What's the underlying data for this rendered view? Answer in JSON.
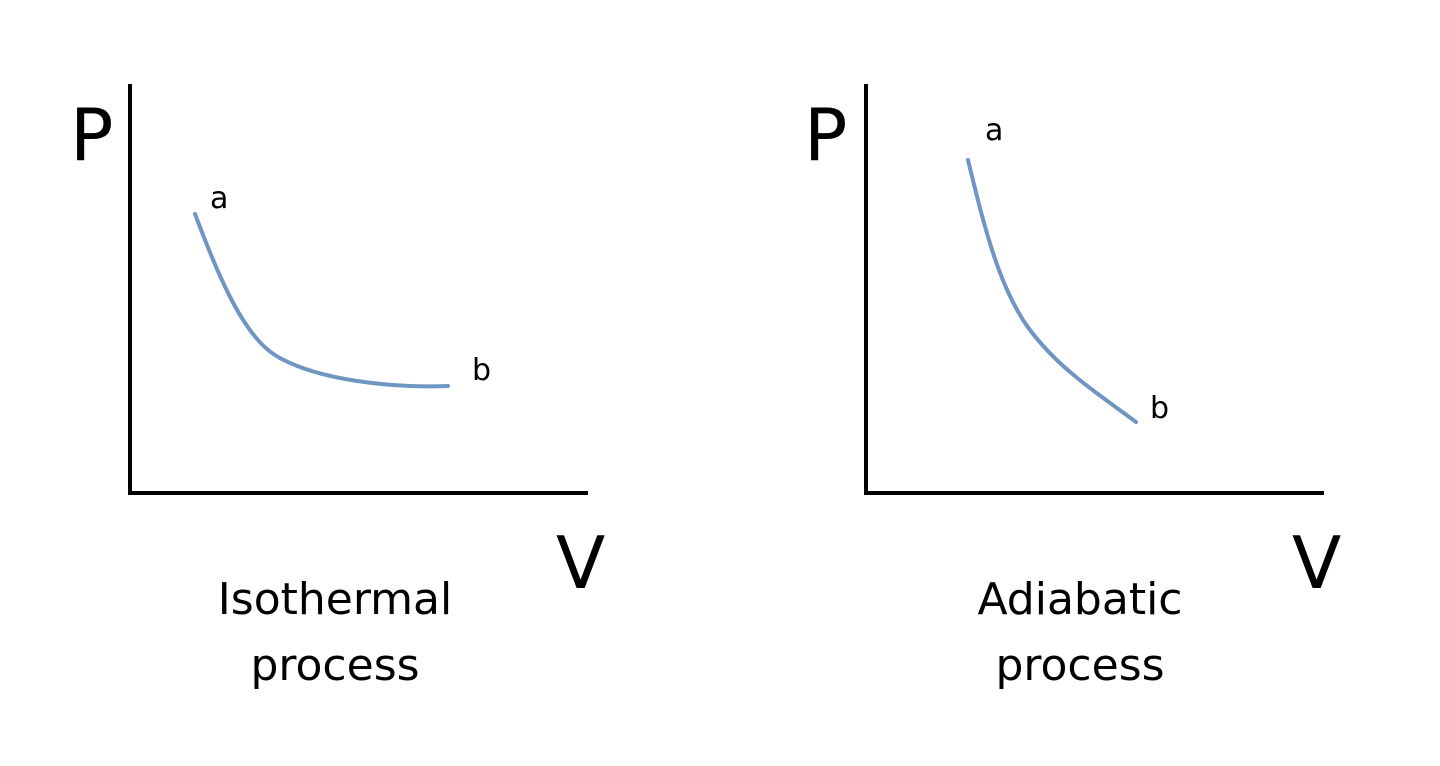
{
  "colors": {
    "axis": "#000000",
    "curve": "#6f95c2",
    "background": "#ffffff"
  },
  "panels": [
    {
      "y_axis_label": "P",
      "x_axis_label": "V",
      "start_label": "a",
      "end_label": "b",
      "caption_line1": "Isothermal",
      "caption_line2": "process",
      "curve_shape": "gentle hyperbola flattening toward b"
    },
    {
      "y_axis_label": "P",
      "x_axis_label": "V",
      "start_label": "a",
      "end_label": "b",
      "caption_line1": "Adiabatic",
      "caption_line2": "process",
      "curve_shape": "steeper decreasing curve ending lower at b"
    }
  ]
}
